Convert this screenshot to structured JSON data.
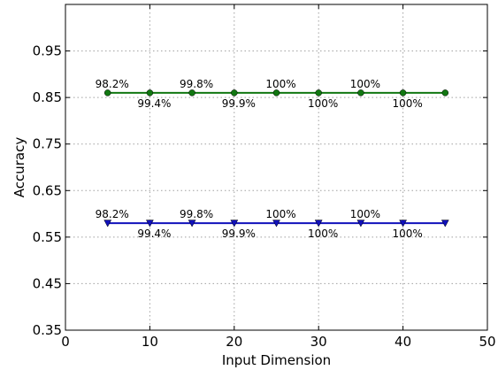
{
  "chart_data": {
    "type": "line",
    "title": "",
    "xlabel": "Input Dimension",
    "ylabel": "Accuracy",
    "xlim": [
      0,
      50
    ],
    "ylim": [
      0.35,
      1.05
    ],
    "xticks": [
      0,
      10,
      20,
      30,
      40,
      50
    ],
    "yticks": [
      0.35,
      0.45,
      0.55,
      0.65,
      0.75,
      0.85,
      0.95
    ],
    "xtick_labels": [
      "0",
      "10",
      "20",
      "30",
      "40",
      "50"
    ],
    "ytick_labels": [
      "0.35",
      "0.45",
      "0.55",
      "0.65",
      "0.75",
      "0.85",
      "0.95"
    ],
    "grid": true,
    "x": [
      5,
      10,
      15,
      20,
      25,
      30,
      35,
      40,
      45
    ],
    "series": [
      {
        "color": "#117711",
        "marker": "circle",
        "values": [
          0.86,
          0.86,
          0.86,
          0.86,
          0.86,
          0.86,
          0.86,
          0.86,
          0.86
        ],
        "data_labels": [
          {
            "x": 5,
            "text": "98.2%",
            "position": "above"
          },
          {
            "x": 10,
            "text": "99.4%",
            "position": "below"
          },
          {
            "x": 15,
            "text": "99.8%",
            "position": "above"
          },
          {
            "x": 20,
            "text": "99.9%",
            "position": "below"
          },
          {
            "x": 25,
            "text": "100%",
            "position": "above"
          },
          {
            "x": 30,
            "text": "100%",
            "position": "below"
          },
          {
            "x": 35,
            "text": "100%",
            "position": "above"
          },
          {
            "x": 40,
            "text": "100%",
            "position": "below"
          }
        ]
      },
      {
        "color": "#1111bb",
        "marker": "triangle-down",
        "values": [
          0.58,
          0.58,
          0.58,
          0.58,
          0.58,
          0.58,
          0.58,
          0.58,
          0.58
        ],
        "data_labels": [
          {
            "x": 5,
            "text": "98.2%",
            "position": "above"
          },
          {
            "x": 10,
            "text": "99.4%",
            "position": "below"
          },
          {
            "x": 15,
            "text": "99.8%",
            "position": "above"
          },
          {
            "x": 20,
            "text": "99.9%",
            "position": "below"
          },
          {
            "x": 25,
            "text": "100%",
            "position": "above"
          },
          {
            "x": 30,
            "text": "100%",
            "position": "below"
          },
          {
            "x": 35,
            "text": "100%",
            "position": "above"
          },
          {
            "x": 40,
            "text": "100%",
            "position": "below"
          }
        ]
      }
    ]
  }
}
